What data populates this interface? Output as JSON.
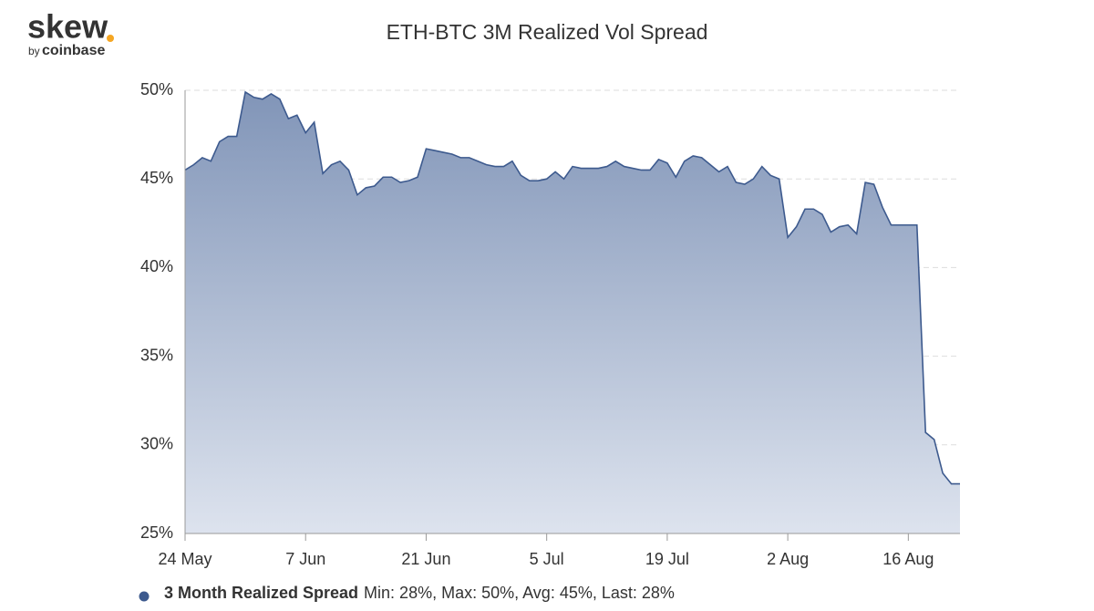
{
  "branding": {
    "logo": "skew",
    "by": "by",
    "company": "coinbase"
  },
  "chart_data": {
    "type": "area",
    "title": "ETH-BTC 3M Realized Vol Spread",
    "categories": [
      "24 May",
      null,
      null,
      null,
      null,
      null,
      null,
      null,
      null,
      null,
      null,
      null,
      null,
      null,
      "7 Jun",
      null,
      null,
      null,
      null,
      null,
      null,
      null,
      null,
      null,
      null,
      null,
      null,
      null,
      "21 Jun",
      null,
      null,
      null,
      null,
      null,
      null,
      null,
      null,
      null,
      null,
      null,
      null,
      null,
      "5 Jul",
      null,
      null,
      null,
      null,
      null,
      null,
      null,
      null,
      null,
      null,
      null,
      null,
      null,
      "19 Jul",
      null,
      null,
      null,
      null,
      null,
      null,
      null,
      null,
      null,
      null,
      null,
      null,
      null,
      "2 Aug",
      null,
      null,
      null,
      null,
      null,
      null,
      null,
      null,
      null,
      null,
      null,
      null,
      null,
      "16 Aug",
      null,
      null,
      null,
      null,
      null,
      null
    ],
    "series": [
      {
        "name": "3 Month Realized Spread",
        "color": "#3d5a8e",
        "values": [
          45.5,
          45.8,
          46.2,
          46.0,
          47.1,
          47.4,
          47.4,
          49.9,
          49.6,
          49.5,
          49.8,
          49.5,
          48.4,
          48.6,
          47.6,
          48.2,
          45.3,
          45.8,
          46.0,
          45.5,
          44.1,
          44.5,
          44.6,
          45.1,
          45.1,
          44.8,
          44.9,
          45.1,
          46.7,
          46.6,
          46.5,
          46.4,
          46.2,
          46.2,
          46.0,
          45.8,
          45.7,
          45.7,
          46.0,
          45.2,
          44.9,
          44.9,
          45.0,
          45.4,
          45.0,
          45.7,
          45.6,
          45.6,
          45.6,
          45.7,
          46.0,
          45.7,
          45.6,
          45.5,
          45.5,
          46.1,
          45.9,
          45.1,
          46.0,
          46.3,
          46.2,
          45.8,
          45.4,
          45.7,
          44.8,
          44.7,
          45.0,
          45.7,
          45.2,
          45.0,
          41.7,
          42.3,
          43.3,
          43.3,
          43.0,
          42.0,
          42.3,
          42.4,
          41.9,
          44.8,
          44.7,
          43.4,
          42.4,
          42.4,
          42.4,
          42.4,
          30.7,
          30.3,
          28.4,
          27.8,
          27.8
        ]
      }
    ],
    "legend_stats": "Min: 28%, Max: 50%, Avg: 45%, Last: 28%",
    "ylim": [
      25,
      50
    ],
    "yticks": [
      {
        "value": 25,
        "label": "25%"
      },
      {
        "value": 30,
        "label": "30%"
      },
      {
        "value": 35,
        "label": "35%"
      },
      {
        "value": 40,
        "label": "40%"
      },
      {
        "value": 45,
        "label": "45%"
      },
      {
        "value": 50,
        "label": "50%"
      }
    ],
    "grid": true
  }
}
